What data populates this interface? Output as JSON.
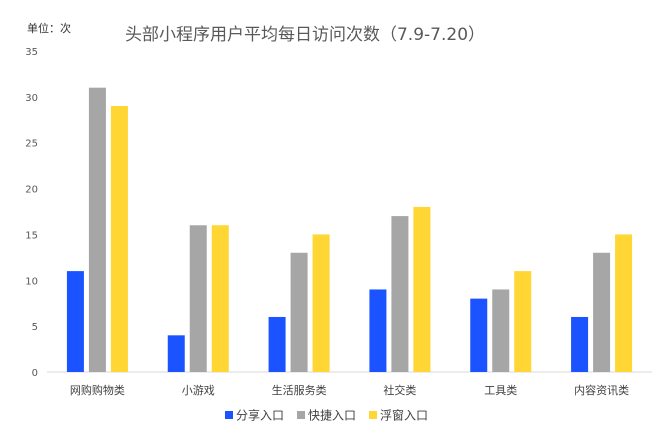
{
  "chart_data": {
    "type": "bar",
    "title": "头部小程序用户平均每日访问次数（7.9-7.20）",
    "unit_label": "单位：次",
    "categories": [
      "网购购物类",
      "小游戏",
      "生活服务类",
      "社交类",
      "工具类",
      "内容资讯类"
    ],
    "series": [
      {
        "name": "分享入口",
        "color": "#1a53ff",
        "values": [
          11,
          4,
          6,
          9,
          8,
          6
        ]
      },
      {
        "name": "快捷入口",
        "color": "#a6a6a6",
        "values": [
          31,
          16,
          13,
          17,
          9,
          13
        ]
      },
      {
        "name": "浮窗入口",
        "color": "#ffd633",
        "values": [
          29,
          16,
          15,
          18,
          11,
          15
        ]
      }
    ],
    "ylim": [
      0,
      35
    ],
    "yticks": [
      0,
      5,
      10,
      15,
      20,
      25,
      30,
      35
    ],
    "grid": false,
    "legend_position": "bottom"
  }
}
